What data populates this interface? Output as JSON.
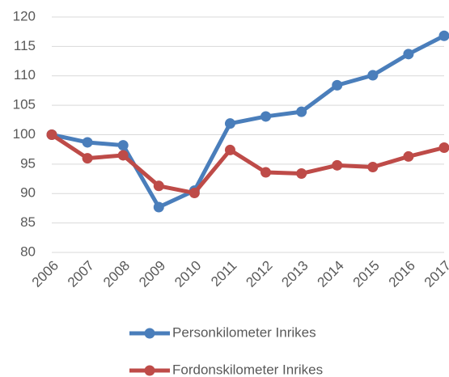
{
  "chart_data": {
    "type": "line",
    "categories": [
      "2006",
      "2007",
      "2008",
      "2009",
      "2010",
      "2011",
      "2012",
      "2013",
      "2014",
      "2015",
      "2016",
      "2017"
    ],
    "series": [
      {
        "name": "Personkilometer Inrikes",
        "color": "#4a7ebb",
        "values": [
          100,
          98.7,
          98.2,
          87.7,
          90.5,
          101.9,
          103.1,
          103.9,
          108.4,
          110.1,
          113.7,
          116.8
        ]
      },
      {
        "name": "Fordonskilometer Inrikes",
        "color": "#be4b48",
        "values": [
          100,
          96,
          96.5,
          91.3,
          90.1,
          97.4,
          93.6,
          93.4,
          94.8,
          94.5,
          96.3,
          97.8
        ]
      }
    ],
    "ylim": [
      80,
      120
    ],
    "yticks": [
      80,
      85,
      90,
      95,
      100,
      105,
      110,
      115,
      120
    ],
    "grid": true
  }
}
